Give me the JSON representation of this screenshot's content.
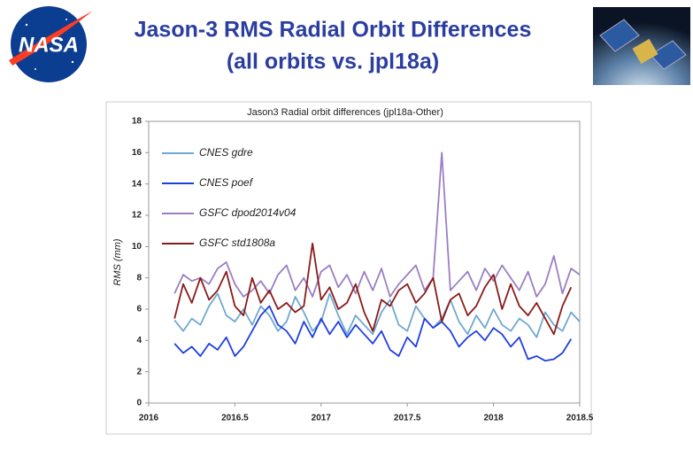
{
  "slide": {
    "title": "Jason-3 RMS Radial Orbit Differences",
    "subtitle": "(all orbits vs. jpl18a)",
    "logo_text": "NASA"
  },
  "chart_data": {
    "type": "line",
    "title": "Jason3 Radial orbit differences (jpl18a-Other)",
    "y_label": "RMS (mm)",
    "x": [
      2016.15,
      2016.2,
      2016.25,
      2016.3,
      2016.35,
      2016.4,
      2016.45,
      2016.5,
      2016.55,
      2016.6,
      2016.65,
      2016.7,
      2016.75,
      2016.8,
      2016.85,
      2016.9,
      2016.95,
      2017.0,
      2017.05,
      2017.1,
      2017.15,
      2017.2,
      2017.25,
      2017.3,
      2017.35,
      2017.4,
      2017.45,
      2017.5,
      2017.55,
      2017.6,
      2017.65,
      2017.7,
      2017.75,
      2017.8,
      2017.85,
      2017.9,
      2017.95,
      2018.0,
      2018.05,
      2018.1,
      2018.15,
      2018.2,
      2018.25,
      2018.3,
      2018.35,
      2018.4,
      2018.45,
      2018.5
    ],
    "series": [
      {
        "name": "CNES gdre",
        "color": "#6fa8d0",
        "values": [
          5.3,
          4.6,
          5.4,
          5.0,
          6.2,
          7.0,
          5.6,
          5.2,
          6.0,
          5.0,
          6.2,
          5.6,
          4.6,
          5.2,
          6.8,
          5.8,
          4.6,
          5.2,
          7.0,
          5.6,
          4.4,
          5.6,
          5.0,
          4.4,
          5.8,
          6.6,
          5.0,
          4.6,
          6.2,
          5.4,
          4.8,
          5.4,
          6.6,
          5.2,
          4.4,
          5.6,
          4.8,
          6.0,
          5.0,
          4.6,
          5.4,
          5.0,
          4.2,
          5.8,
          5.0,
          4.6,
          5.8,
          5.2
        ]
      },
      {
        "name": "CNES poef",
        "color": "#1f3fe0",
        "values": [
          3.8,
          3.2,
          3.6,
          3.0,
          3.8,
          3.4,
          4.2,
          3.0,
          3.6,
          4.6,
          5.6,
          6.2,
          5.0,
          4.6,
          3.8,
          5.2,
          4.2,
          5.4,
          4.4,
          5.2,
          4.2,
          5.0,
          4.4,
          3.8,
          4.6,
          3.4,
          3.0,
          4.2,
          3.6,
          5.4,
          4.8,
          5.2,
          4.6,
          3.6,
          4.2,
          4.6,
          4.0,
          4.8,
          4.4,
          3.6,
          4.2,
          2.8,
          3.0,
          2.7,
          2.8,
          3.2,
          4.1,
          null
        ]
      },
      {
        "name": "GSFC dpod2014v04",
        "color": "#9a7fc4",
        "values": [
          7.0,
          8.2,
          7.8,
          8.0,
          7.6,
          8.6,
          9.0,
          7.6,
          6.8,
          7.2,
          7.8,
          7.0,
          8.2,
          8.8,
          7.2,
          8.0,
          6.8,
          8.4,
          8.8,
          7.4,
          8.2,
          7.0,
          8.4,
          7.2,
          8.6,
          6.8,
          7.6,
          8.2,
          8.8,
          7.2,
          8.0,
          16.0,
          7.2,
          7.8,
          8.4,
          7.2,
          8.6,
          7.8,
          8.8,
          8.0,
          7.2,
          8.4,
          6.8,
          7.6,
          9.4,
          7.0,
          8.6,
          8.2
        ]
      },
      {
        "name": "GSFC std1808a",
        "color": "#8b1a1a",
        "values": [
          5.4,
          7.6,
          6.4,
          8.0,
          6.6,
          7.2,
          8.4,
          6.2,
          5.6,
          8.0,
          6.4,
          7.2,
          6.0,
          6.4,
          5.8,
          6.2,
          10.2,
          6.6,
          7.4,
          6.0,
          6.4,
          7.6,
          5.8,
          4.6,
          6.6,
          6.2,
          7.2,
          7.6,
          6.4,
          7.0,
          8.0,
          5.2,
          6.6,
          7.0,
          5.6,
          6.2,
          7.4,
          8.2,
          6.0,
          7.6,
          6.2,
          5.6,
          6.4,
          5.4,
          4.4,
          6.2,
          7.4,
          null
        ]
      }
    ],
    "xlim": [
      2016,
      2018.5
    ],
    "ylim": [
      0,
      18
    ],
    "xticks": [
      2016,
      2016.5,
      2017,
      2017.5,
      2018,
      2018.5
    ],
    "yticks": [
      0,
      2,
      4,
      6,
      8,
      10,
      12,
      14,
      16,
      18
    ],
    "grid": false,
    "legend": "upper-left"
  }
}
